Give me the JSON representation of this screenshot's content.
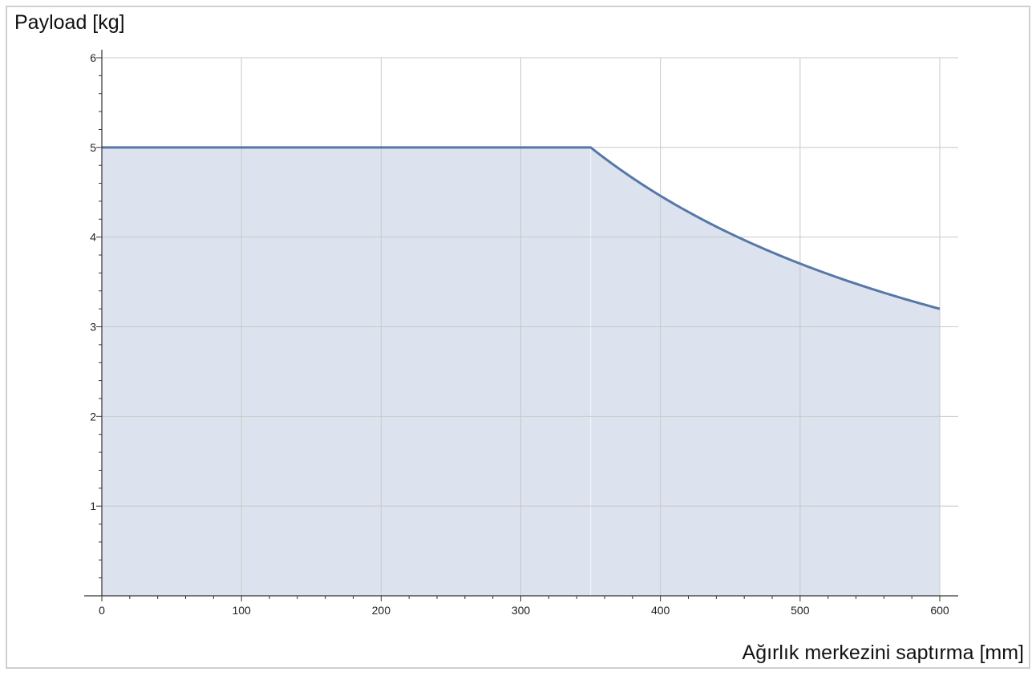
{
  "chart_data": {
    "type": "area",
    "ylabel": "Payload [kg]",
    "xlabel": "Ağırlık merkezini saptırma [mm]",
    "xlim": [
      0,
      600
    ],
    "ylim": [
      0,
      6
    ],
    "x_ticks": [
      "0",
      "100",
      "200",
      "300",
      "400",
      "500",
      "600"
    ],
    "y_ticks": [
      "1",
      "2",
      "3",
      "4",
      "5",
      "6"
    ],
    "grid": true,
    "series": [
      {
        "x": [
          0,
          50,
          100,
          150,
          200,
          250,
          300,
          350,
          375,
          400,
          425,
          450,
          475,
          500,
          525,
          550,
          575,
          600
        ],
        "y": [
          5,
          5,
          5,
          5,
          5,
          5,
          5,
          5,
          4.67,
          4.38,
          4.12,
          3.89,
          3.68,
          3.5,
          3.33,
          3.18,
          3.04,
          3.2
        ]
      }
    ],
    "colors": {
      "line": "#5677a8",
      "fill": "#dde3ee",
      "grid": "#c8c8c8",
      "axis": "#333333"
    }
  }
}
